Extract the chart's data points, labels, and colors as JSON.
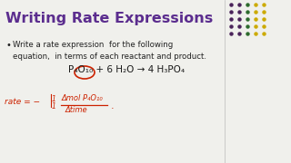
{
  "title": "Writing Rate Expressions",
  "title_color": "#5B2D8E",
  "title_fontsize": 11.5,
  "bullet_text1": "Write a rate expression  for the following",
  "bullet_text2": "equation,  in terms of each reactant and product.",
  "equation": "P₄O₁₀ + 6 H₂O → 4 H₃PO₄",
  "bg_color": "#f0f0ec",
  "text_color": "#222222",
  "eq_color": "#1a1a1a",
  "hand_color": "#cc2200",
  "dot_cols": [
    "#4a235a",
    "#4a235a",
    "#2e6b2e",
    "#ccaa00"
  ],
  "figsize": [
    3.2,
    1.8
  ],
  "dpi": 100
}
